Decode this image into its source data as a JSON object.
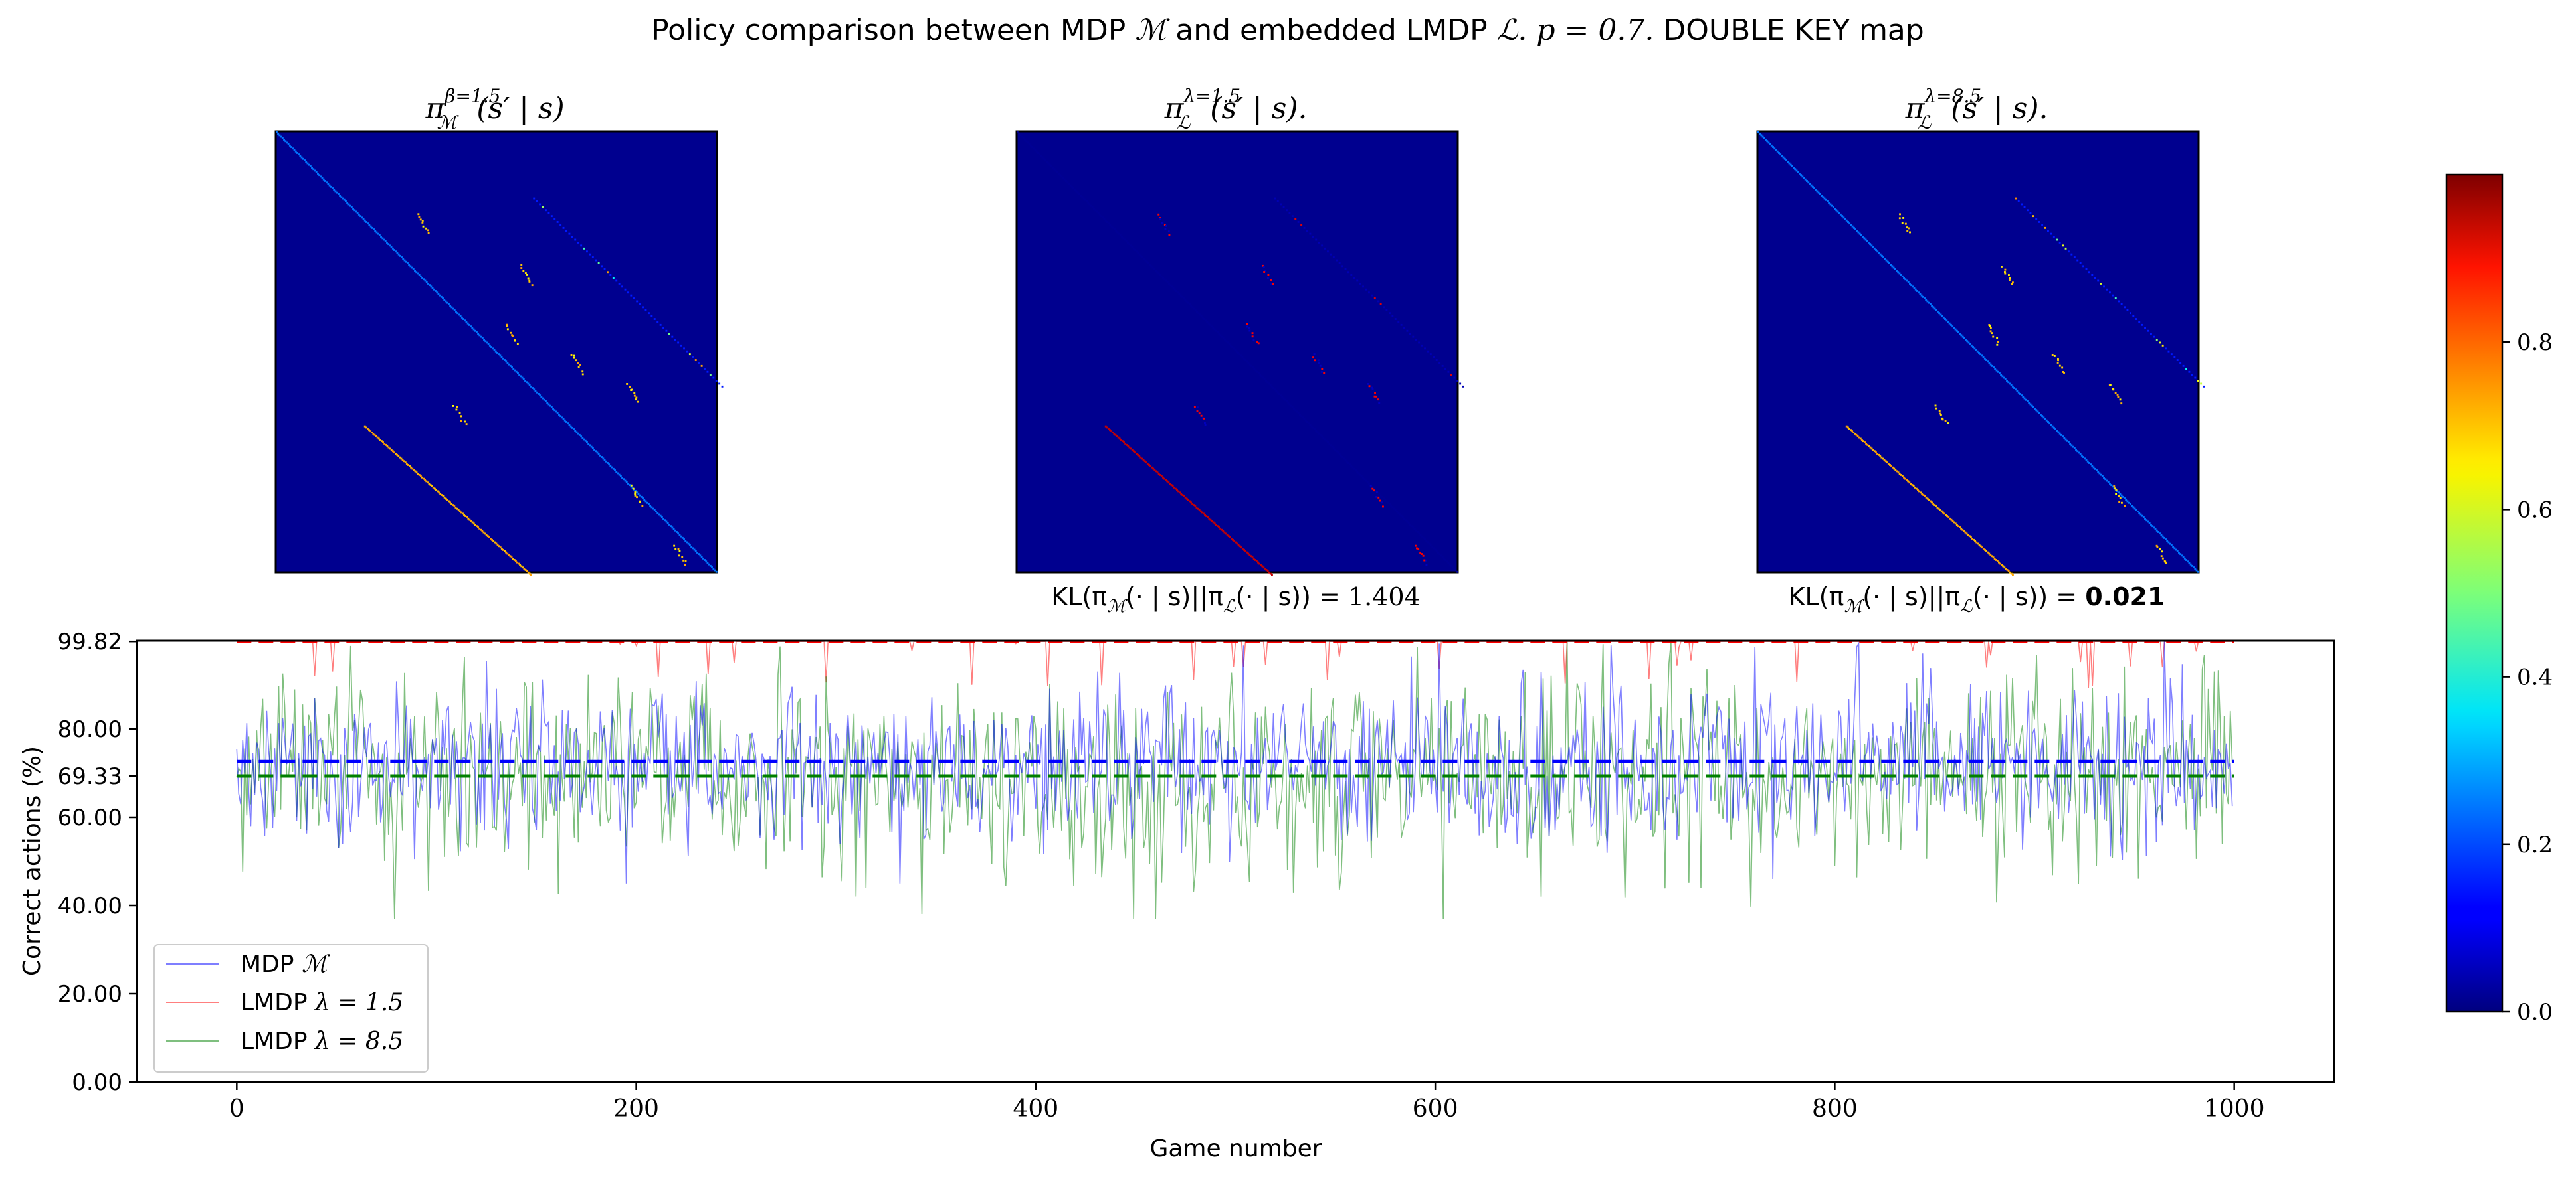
{
  "figure": {
    "title_prefix": "Policy comparison between MDP ",
    "title_M": "ℳ",
    "title_mid": " and embedded LMDP ",
    "title_L": "ℒ",
    "title_p": ". p = 0.7.",
    "title_suffix": " DOUBLE KEY map"
  },
  "heatmaps": [
    {
      "pi": "π",
      "sup": "β=1.5",
      "sub": "ℳ",
      "arg": "(s′ | s)",
      "kl": null,
      "kl_bold": false
    },
    {
      "pi": "π",
      "sup": "λ=1.5",
      "sub": "ℒ",
      "arg": "(s′ | s).",
      "kl_prefix": "KL(π",
      "kl_mid": "(· | s)||π",
      "kl_end": "(· | s)) = ",
      "kl": "1.404",
      "kl_bold": false
    },
    {
      "pi": "π",
      "sup": "λ=8.5",
      "sub": "ℒ",
      "arg": "(s′ | s).",
      "kl_prefix": "KL(π",
      "kl_mid": "(· | s)||π",
      "kl_end": "(· | s)) = ",
      "kl": "0.021",
      "kl_bold": true
    }
  ],
  "colorbar": {
    "ticks": [
      "0.0",
      "0.2",
      "0.4",
      "0.6",
      "0.8"
    ],
    "tick_values": [
      0.0,
      0.2,
      0.4,
      0.6,
      0.8
    ],
    "range": [
      0.0,
      1.0
    ]
  },
  "chart_data": {
    "type": "line",
    "xlabel": "Game number",
    "ylabel": "Correct actions (%)",
    "xlim": [
      -50,
      1050
    ],
    "ylim": [
      0,
      100
    ],
    "x_ticks": [
      0,
      200,
      400,
      600,
      800,
      1000
    ],
    "x_tick_labels": [
      "0",
      "200",
      "400",
      "600",
      "800",
      "1000"
    ],
    "y_ticks": [
      0,
      20,
      40,
      60,
      69.33,
      80,
      99.82
    ],
    "y_tick_labels": [
      "0.00",
      "20.00",
      "40.00",
      "60.00",
      "69.33",
      "80.00",
      "99.82"
    ],
    "legend_position": "lower-left",
    "series": [
      {
        "name": "MDP ℳ",
        "label_text": "MDP ",
        "label_math": "ℳ",
        "color": "#0000ff",
        "mean": 72.6,
        "mean_color": "#0000ff",
        "min": 45,
        "max": 99.8,
        "n": 1000
      },
      {
        "name": "LMDP λ = 1.5",
        "label_text": "LMDP ",
        "label_math": "λ = 1.5",
        "color": "#ff0000",
        "mean": 99.82,
        "mean_color": "#ff0000",
        "min": 89,
        "max": 99.82,
        "n": 1000
      },
      {
        "name": "LMDP λ = 8.5",
        "label_text": "LMDP ",
        "label_math": "λ = 8.5",
        "color": "#008000",
        "mean": 69.33,
        "mean_color": "#008000",
        "min": 37,
        "max": 99.8,
        "n": 1000
      }
    ]
  }
}
